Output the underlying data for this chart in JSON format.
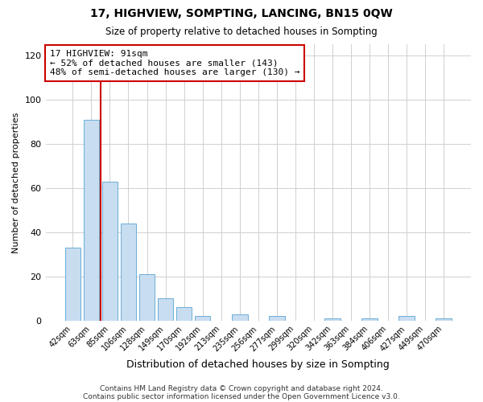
{
  "title": "17, HIGHVIEW, SOMPTING, LANCING, BN15 0QW",
  "subtitle": "Size of property relative to detached houses in Sompting",
  "xlabel": "Distribution of detached houses by size in Sompting",
  "ylabel": "Number of detached properties",
  "bar_labels": [
    "42sqm",
    "63sqm",
    "85sqm",
    "106sqm",
    "128sqm",
    "149sqm",
    "170sqm",
    "192sqm",
    "213sqm",
    "235sqm",
    "256sqm",
    "277sqm",
    "299sqm",
    "320sqm",
    "342sqm",
    "363sqm",
    "384sqm",
    "406sqm",
    "427sqm",
    "449sqm",
    "470sqm"
  ],
  "bar_values": [
    33,
    91,
    63,
    44,
    21,
    10,
    6,
    2,
    0,
    3,
    0,
    2,
    0,
    0,
    1,
    0,
    1,
    0,
    2,
    0,
    1
  ],
  "bar_color": "#c8ddf0",
  "bar_edge_color": "#6baed6",
  "vline_x_index": 1.5,
  "vline_color": "#cc0000",
  "annotation_text": "17 HIGHVIEW: 91sqm\n← 52% of detached houses are smaller (143)\n48% of semi-detached houses are larger (130) →",
  "ylim": [
    0,
    125
  ],
  "yticks": [
    0,
    20,
    40,
    60,
    80,
    100,
    120
  ],
  "footer1": "Contains HM Land Registry data © Crown copyright and database right 2024.",
  "footer2": "Contains public sector information licensed under the Open Government Licence v3.0.",
  "bg_color": "#ffffff",
  "grid_color": "#d0d0d0"
}
